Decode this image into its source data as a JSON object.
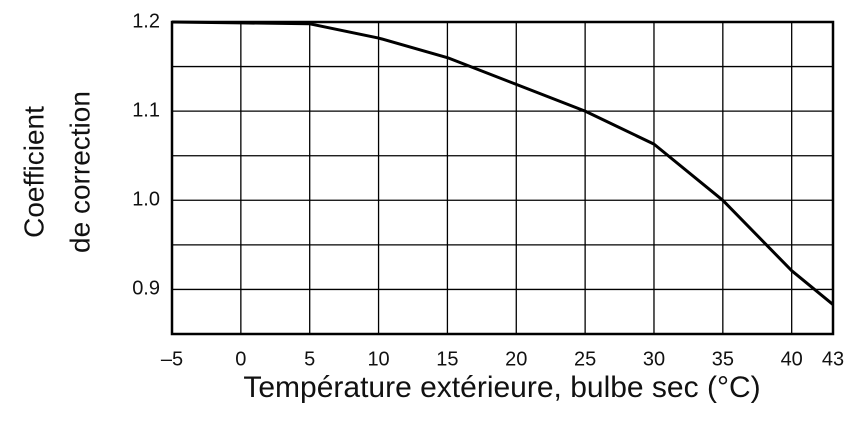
{
  "chart_data": {
    "type": "line",
    "x_label": "Température extérieure, bulbe sec (°C)",
    "y_label": [
      "Coefficient",
      "de correction"
    ],
    "x": [
      -5,
      0,
      5,
      10,
      15,
      20,
      25,
      30,
      35,
      40,
      43
    ],
    "series": [
      {
        "color": "#000000",
        "values": [
          1.2,
          1.199,
          1.198,
          1.182,
          1.16,
          1.13,
          1.1,
          1.063,
          1.0,
          0.921,
          0.883
        ]
      }
    ],
    "xlim": [
      -5,
      43
    ],
    "ylim": [
      0.85,
      1.2
    ],
    "xticks": [
      {
        "value": -5,
        "label": "–5"
      },
      0,
      5,
      10,
      15,
      20,
      25,
      30,
      35,
      40,
      43
    ],
    "yticks": [
      0.9,
      {
        "value": 1,
        "label": "1.0"
      },
      1.1,
      1.2
    ],
    "y_minor_grid": [
      0.95,
      1.05,
      1.15
    ],
    "grid": true
  }
}
